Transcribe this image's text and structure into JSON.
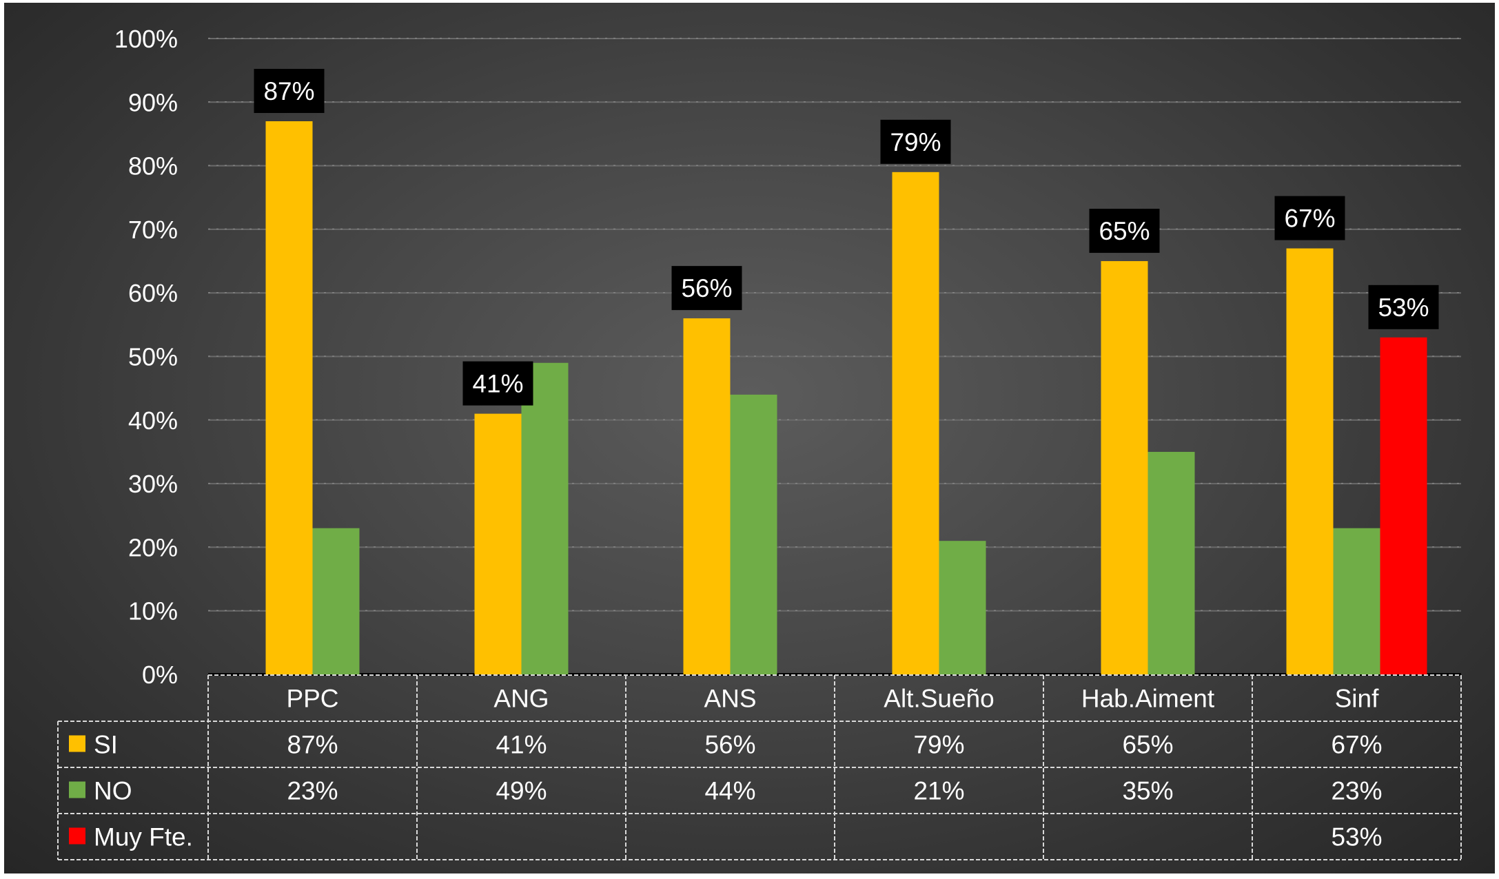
{
  "chart_data": {
    "type": "bar",
    "categories": [
      "PPC",
      "ANG",
      "ANS",
      "Alt.Sueño",
      "Hab.Aiment",
      "Sinf"
    ],
    "series": [
      {
        "name": "SI",
        "values": [
          87,
          41,
          56,
          79,
          65,
          67
        ],
        "table_values": [
          "87%",
          "41%",
          "56%",
          "79%",
          "65%",
          "67%"
        ],
        "data_labels": [
          "87%",
          "41%",
          "56%",
          "79%",
          "65%",
          "67%"
        ],
        "color": "#FFC000"
      },
      {
        "name": "NO",
        "values": [
          23,
          49,
          44,
          21,
          35,
          23
        ],
        "table_values": [
          "23%",
          "49%",
          "44%",
          "21%",
          "35%",
          "23%"
        ],
        "color": "#70AD47"
      },
      {
        "name": "Muy Fte.",
        "values": [
          null,
          null,
          null,
          null,
          null,
          53
        ],
        "table_values": [
          "",
          "",
          "",
          "",
          "",
          "53%"
        ],
        "data_labels": [
          "",
          "",
          "",
          "",
          "",
          "53%"
        ],
        "color": "#FF0000"
      }
    ],
    "y_ticks": [
      "0%",
      "10%",
      "20%",
      "30%",
      "40%",
      "50%",
      "60%",
      "70%",
      "80%",
      "90%",
      "100%"
    ],
    "ylim": [
      0,
      100
    ],
    "grid": true,
    "legend": "data-table",
    "title": "",
    "xlabel": "",
    "ylabel": ""
  },
  "colors": {
    "background": "#3f3f3f",
    "text": "#ffffff",
    "gridline": "#6a6a6a",
    "label_box": "#000000"
  }
}
